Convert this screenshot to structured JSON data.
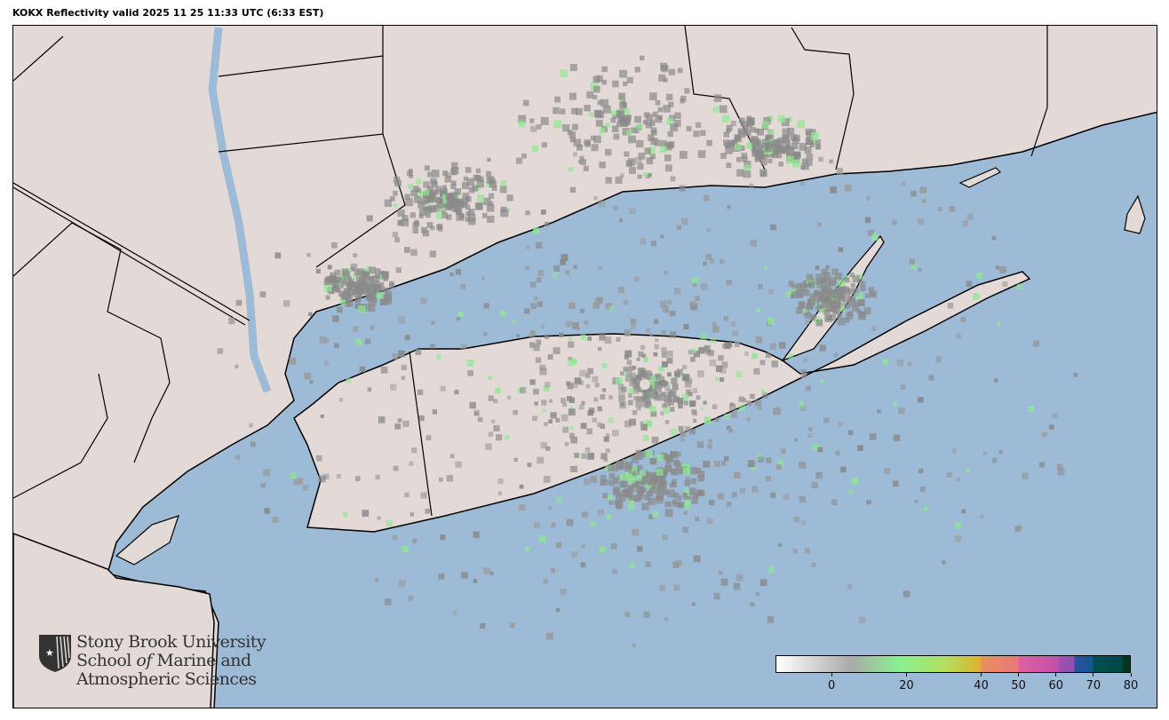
{
  "title": "KOKX Reflectivity valid 2025 11 25 11:33 UTC (6:33 EST)",
  "map": {
    "radar_site": "KOKX",
    "colors": {
      "land": "#e3dad7",
      "water": "#9dbad6",
      "border": "#000000"
    }
  },
  "logo": {
    "icon": "stony-brook-shield-icon",
    "line1": "Stony Brook University",
    "line2a": "School ",
    "line2b": "of",
    "line2c": " Marine and",
    "line3": "Atmospheric Sciences"
  },
  "colorbar": {
    "range": [
      -15,
      80
    ],
    "ticks": [
      "0",
      "20",
      "40",
      "50",
      "60",
      "70",
      "80"
    ],
    "tick_values": [
      0,
      20,
      40,
      50,
      60,
      70,
      80
    ],
    "stops": [
      {
        "v": -15,
        "c": "#ffffff"
      },
      {
        "v": 5,
        "c": "#aaaaaa"
      },
      {
        "v": 18,
        "c": "#88f090"
      },
      {
        "v": 30,
        "c": "#b0e060"
      },
      {
        "v": 40,
        "c": "#e0b030"
      },
      {
        "v": 40.1,
        "c": "#e89060"
      },
      {
        "v": 50,
        "c": "#e87878"
      },
      {
        "v": 50.1,
        "c": "#e060a0"
      },
      {
        "v": 60.9,
        "c": "#c050a8"
      },
      {
        "v": 61,
        "c": "#a050b0"
      },
      {
        "v": 65,
        "c": "#9050b0"
      },
      {
        "v": 65.1,
        "c": "#3050a0"
      },
      {
        "v": 70,
        "c": "#105890"
      },
      {
        "v": 70.1,
        "c": "#005050"
      },
      {
        "v": 78,
        "c": "#004848"
      },
      {
        "v": 78.1,
        "c": "#003820"
      },
      {
        "v": 80,
        "c": "#003820"
      }
    ]
  }
}
